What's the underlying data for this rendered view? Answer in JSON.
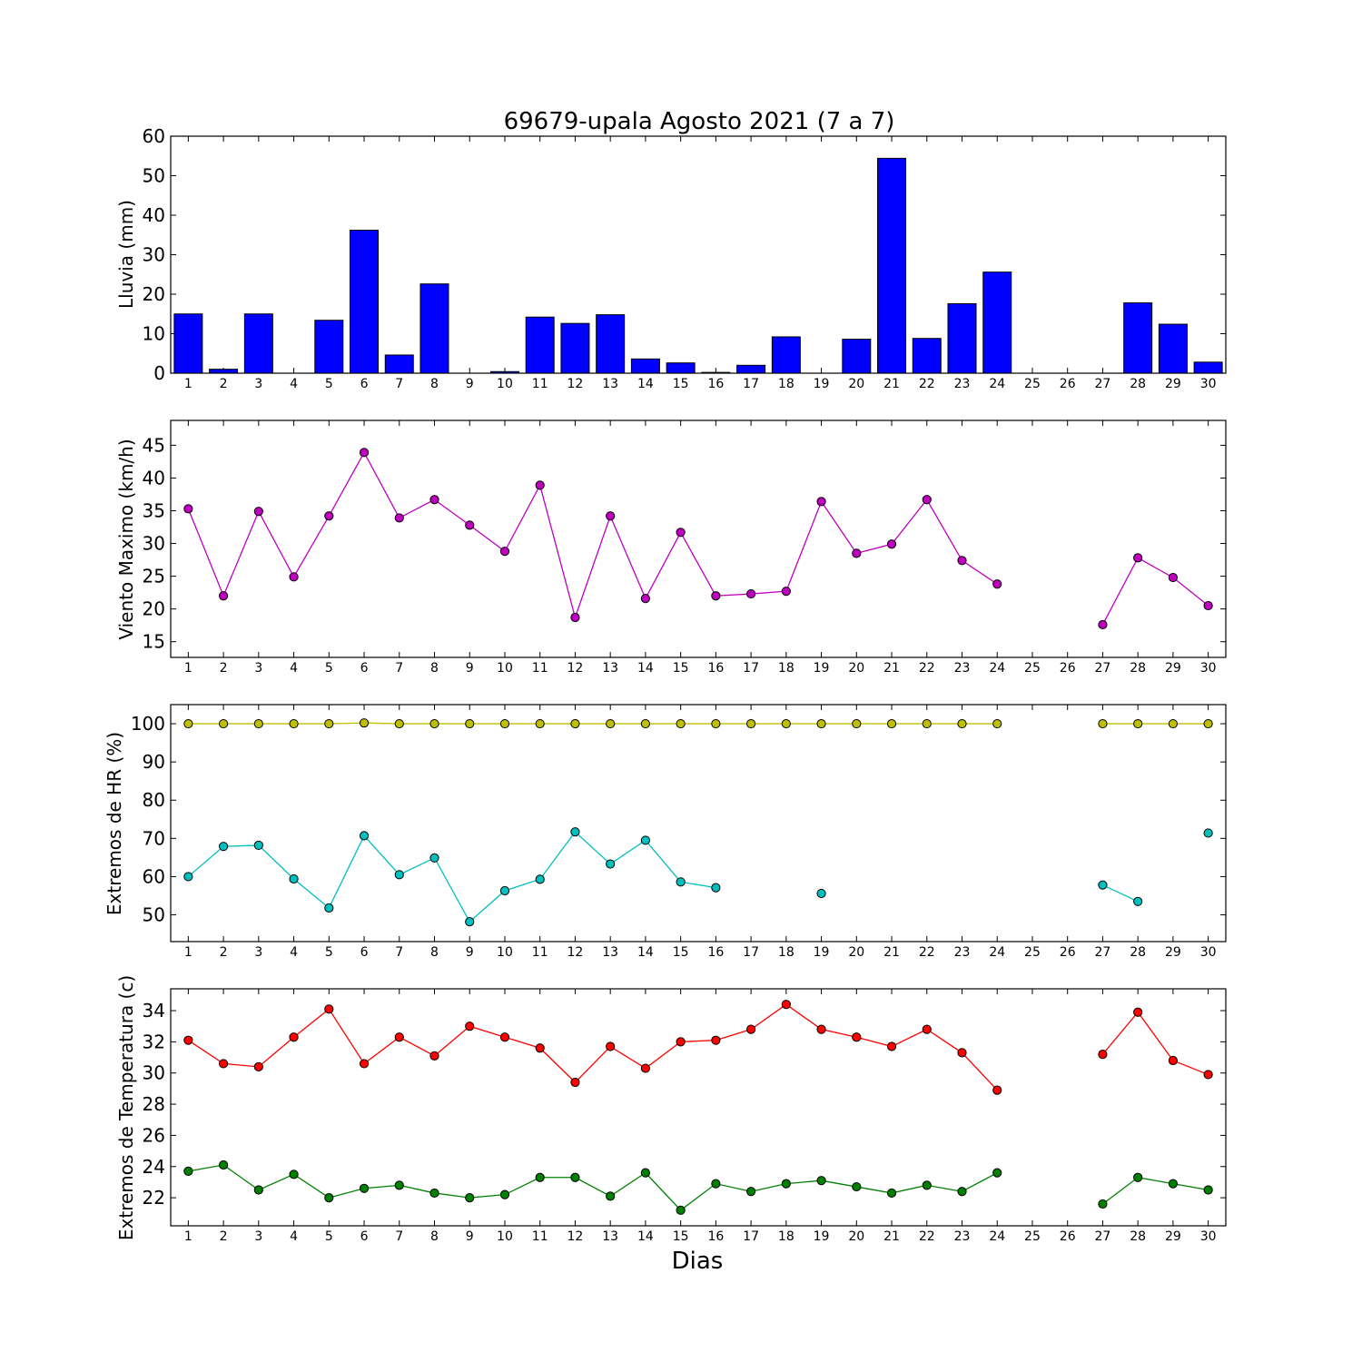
{
  "chart_data": [
    {
      "type": "bar",
      "title": "69679-upala Agosto 2021  (7 a 7)",
      "ylabel": "Lluvia (mm)",
      "xlabel": "",
      "ylim": [
        0,
        60
      ],
      "yticks": [
        0,
        10,
        20,
        30,
        40,
        50,
        60
      ],
      "categories": [
        1,
        2,
        3,
        4,
        5,
        6,
        7,
        8,
        9,
        10,
        11,
        12,
        13,
        14,
        15,
        16,
        17,
        18,
        19,
        20,
        21,
        22,
        23,
        24,
        25,
        26,
        27,
        28,
        29,
        30
      ],
      "values": [
        15.0,
        1.0,
        15.0,
        0,
        13.4,
        36.2,
        4.6,
        22.6,
        0,
        0.4,
        14.2,
        12.6,
        14.8,
        3.6,
        2.6,
        0.2,
        2.0,
        9.2,
        0,
        8.6,
        54.4,
        8.8,
        17.6,
        25.6,
        0,
        0,
        0,
        17.8,
        12.4,
        2.8
      ],
      "color": "#0000ff"
    },
    {
      "type": "line",
      "ylabel": "Viento Maximo (km/h)",
      "ylim": [
        12.6,
        48.8
      ],
      "yticks": [
        15,
        20,
        25,
        30,
        35,
        40,
        45
      ],
      "x": [
        1,
        2,
        3,
        4,
        5,
        6,
        7,
        8,
        9,
        10,
        11,
        12,
        13,
        14,
        15,
        16,
        17,
        18,
        19,
        20,
        21,
        22,
        23,
        24,
        25,
        26,
        27,
        28,
        29,
        30
      ],
      "series": [
        {
          "values": [
            35.3,
            22.0,
            34.9,
            24.9,
            34.2,
            43.9,
            33.9,
            36.7,
            32.8,
            28.8,
            38.9,
            18.7,
            34.2,
            21.6,
            31.7,
            22.0,
            22.3,
            22.7,
            36.4,
            28.5,
            29.9,
            36.7,
            27.4,
            23.8,
            null,
            null,
            17.6,
            27.8,
            24.8,
            20.5
          ],
          "color": "#bf00bf"
        }
      ]
    },
    {
      "type": "line",
      "ylabel": "Extremos de HR (%)",
      "ylim": [
        43,
        105
      ],
      "yticks": [
        50,
        60,
        70,
        80,
        90,
        100
      ],
      "x": [
        1,
        2,
        3,
        4,
        5,
        6,
        7,
        8,
        9,
        10,
        11,
        12,
        13,
        14,
        15,
        16,
        17,
        18,
        19,
        20,
        21,
        22,
        23,
        24,
        25,
        26,
        27,
        28,
        29,
        30
      ],
      "series": [
        {
          "values": [
            100,
            100,
            100,
            100,
            100,
            100.2,
            100,
            100,
            100,
            100,
            100,
            100,
            100,
            100,
            100,
            100,
            100,
            100,
            100,
            100,
            100,
            100,
            100,
            100,
            null,
            null,
            100,
            100,
            100,
            100
          ],
          "color": "#bfbf00"
        },
        {
          "values": [
            60.0,
            67.9,
            68.2,
            59.4,
            51.8,
            70.7,
            60.5,
            64.9,
            48.2,
            56.3,
            59.3,
            71.7,
            63.3,
            69.5,
            58.6,
            57.1,
            null,
            null,
            55.6,
            null,
            null,
            null,
            null,
            null,
            null,
            null,
            57.8,
            53.5,
            null,
            71.4
          ],
          "color": "#00bfbf"
        }
      ]
    },
    {
      "type": "line",
      "ylabel": "Extremos de Temperatura (c)",
      "xlabel": "Dias",
      "ylim": [
        20.2,
        35.4
      ],
      "yticks": [
        22,
        24,
        26,
        28,
        30,
        32,
        34
      ],
      "x": [
        1,
        2,
        3,
        4,
        5,
        6,
        7,
        8,
        9,
        10,
        11,
        12,
        13,
        14,
        15,
        16,
        17,
        18,
        19,
        20,
        21,
        22,
        23,
        24,
        25,
        26,
        27,
        28,
        29,
        30
      ],
      "series": [
        {
          "values": [
            32.1,
            30.6,
            30.4,
            32.3,
            34.1,
            30.6,
            32.3,
            31.1,
            33.0,
            32.3,
            31.6,
            29.4,
            31.7,
            30.3,
            32.0,
            32.1,
            32.8,
            34.4,
            32.8,
            32.3,
            31.7,
            32.8,
            31.3,
            28.9,
            null,
            null,
            31.2,
            33.9,
            30.8,
            29.9
          ],
          "color": "#ff0000"
        },
        {
          "values": [
            23.7,
            24.1,
            22.5,
            23.5,
            22.0,
            22.6,
            22.8,
            22.3,
            22.0,
            22.2,
            23.3,
            23.3,
            22.1,
            23.6,
            21.2,
            22.9,
            22.4,
            22.9,
            23.1,
            22.7,
            22.3,
            22.8,
            22.4,
            23.6,
            null,
            null,
            21.6,
            23.3,
            22.9,
            22.5
          ],
          "color": "#008000"
        }
      ]
    }
  ]
}
